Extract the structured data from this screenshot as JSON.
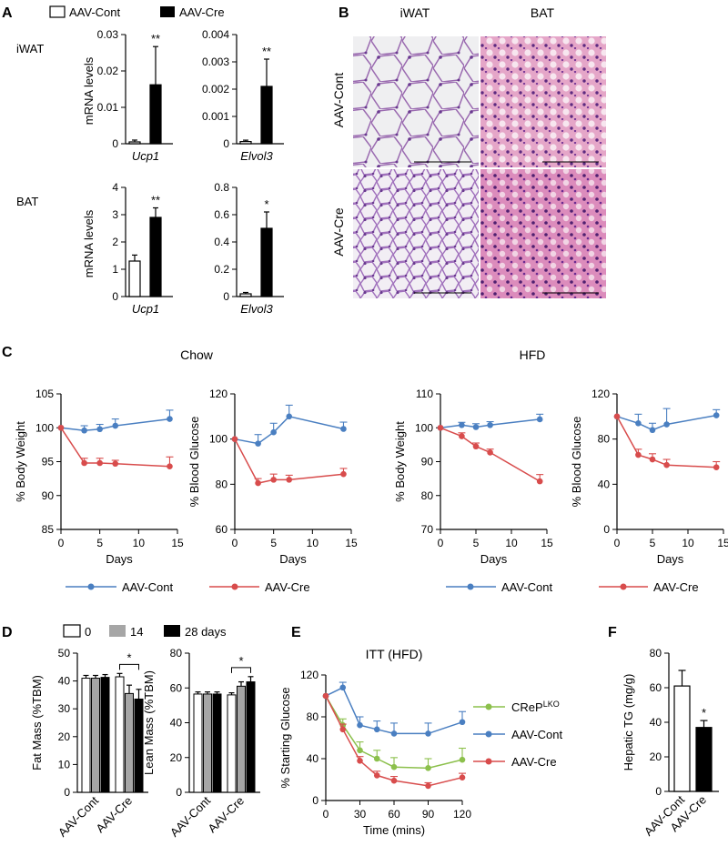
{
  "panel_labels": {
    "A": "A",
    "B": "B",
    "C": "C",
    "D": "D",
    "E": "E",
    "F": "F"
  },
  "colors": {
    "cont": "#4a7fc1",
    "cre": "#d84c4c",
    "crep": "#8cc04c",
    "grey": "#a6a6a6"
  },
  "panelA": {
    "legend": {
      "cont": "AAV-Cont",
      "cre": "AAV-Cre"
    },
    "row_labels": {
      "iwat": "iWAT",
      "bat": "BAT"
    },
    "ylabel": "mRNA levels"
  },
  "panelB": {
    "col_labels": {
      "iwat": "iWAT",
      "bat": "BAT"
    },
    "row_labels": {
      "cont": "AAV-Cont",
      "cre": "AAV-Cre"
    }
  },
  "panelC": {
    "group_titles": {
      "chow": "Chow",
      "hfd": "HFD"
    },
    "legend": {
      "cont": "AAV-Cont",
      "cre": "AAV-Cre"
    }
  },
  "panelD": {
    "legend": {
      "d0": "0",
      "d14": "14",
      "d28": "28 days"
    }
  },
  "panelE": {
    "legend": {
      "crep": "CReP",
      "crep_sup": "LKO",
      "cont": "AAV-Cont",
      "cre": "AAV-Cre"
    }
  },
  "chart_data": [
    {
      "id": "A1",
      "type": "bar",
      "title": "",
      "gene": "Ucp1",
      "tissue": "iWAT",
      "ylabel": "mRNA levels",
      "categories": [
        "AAV-Cont",
        "AAV-Cre"
      ],
      "values": [
        0.0005,
        0.0162
      ],
      "errors": [
        0.0005,
        0.0105
      ],
      "ylim": [
        0,
        0.03
      ],
      "yticks": [
        0,
        0.01,
        0.02,
        0.03
      ],
      "ytick_labels": [
        "0",
        "0.01",
        "0.02",
        "0.03"
      ],
      "sig": "**"
    },
    {
      "id": "A2",
      "type": "bar",
      "title": "",
      "gene": "Elvol3",
      "tissue": "iWAT",
      "categories": [
        "AAV-Cont",
        "AAV-Cre"
      ],
      "values": [
        8e-05,
        0.0021
      ],
      "errors": [
        5e-05,
        0.001
      ],
      "ylim": [
        0,
        0.004
      ],
      "yticks": [
        0,
        0.001,
        0.002,
        0.003,
        0.004
      ],
      "ytick_labels": [
        "0",
        "0.001",
        "0.002",
        "0.003",
        "0.004"
      ],
      "sig": "**"
    },
    {
      "id": "A3",
      "type": "bar",
      "title": "",
      "gene": "Ucp1",
      "tissue": "BAT",
      "ylabel": "mRNA levels",
      "categories": [
        "AAV-Cont",
        "AAV-Cre"
      ],
      "values": [
        1.3,
        2.9
      ],
      "errors": [
        0.22,
        0.35
      ],
      "ylim": [
        0,
        4
      ],
      "yticks": [
        0,
        1,
        2,
        3,
        4
      ],
      "ytick_labels": [
        "0",
        "1",
        "2",
        "3",
        "4"
      ],
      "sig": "**"
    },
    {
      "id": "A4",
      "type": "bar",
      "title": "",
      "gene": "Elvol3",
      "tissue": "BAT",
      "categories": [
        "AAV-Cont",
        "AAV-Cre"
      ],
      "values": [
        0.02,
        0.5
      ],
      "errors": [
        0.01,
        0.12
      ],
      "ylim": [
        0,
        0.8
      ],
      "yticks": [
        0,
        0.2,
        0.4,
        0.6,
        0.8
      ],
      "ytick_labels": [
        "0",
        "0.2",
        "0.4",
        "0.6",
        "0.8"
      ],
      "sig": "*"
    },
    {
      "id": "C1",
      "type": "line",
      "title": "Chow",
      "xlabel": "Days",
      "ylabel": "% Body Weight",
      "xlim": [
        0,
        15
      ],
      "xticks": [
        0,
        5,
        10,
        15
      ],
      "ylim": [
        85,
        105
      ],
      "yticks": [
        85,
        90,
        95,
        100,
        105
      ],
      "series": [
        {
          "name": "AAV-Cont",
          "x": [
            0,
            3,
            5,
            7,
            14
          ],
          "y": [
            100,
            99.6,
            99.8,
            100.3,
            101.3
          ],
          "err": [
            0,
            0.7,
            0.7,
            1.0,
            1.3
          ]
        },
        {
          "name": "AAV-Cre",
          "x": [
            0,
            3,
            5,
            7,
            14
          ],
          "y": [
            100,
            94.8,
            94.8,
            94.7,
            94.3
          ],
          "err": [
            0,
            0.7,
            0.7,
            0.5,
            1.4
          ]
        }
      ]
    },
    {
      "id": "C2",
      "type": "line",
      "title": "Chow",
      "xlabel": "Days",
      "ylabel": "% Blood Glucose",
      "xlim": [
        0,
        15
      ],
      "xticks": [
        0,
        5,
        10,
        15
      ],
      "ylim": [
        60,
        120
      ],
      "yticks": [
        60,
        80,
        100,
        120
      ],
      "series": [
        {
          "name": "AAV-Cont",
          "x": [
            0,
            3,
            5,
            7,
            14
          ],
          "y": [
            100,
            98,
            103,
            110,
            104.5
          ],
          "err": [
            0,
            4,
            4,
            5,
            3
          ]
        },
        {
          "name": "AAV-Cre",
          "x": [
            0,
            3,
            5,
            7,
            14
          ],
          "y": [
            100,
            80.5,
            82,
            82,
            84.5
          ],
          "err": [
            0,
            2,
            2.5,
            2,
            2.5
          ]
        }
      ]
    },
    {
      "id": "C3",
      "type": "line",
      "title": "HFD",
      "xlabel": "Days",
      "ylabel": "% Body Weight",
      "xlim": [
        0,
        15
      ],
      "xticks": [
        0,
        5,
        10,
        15
      ],
      "ylim": [
        70,
        110
      ],
      "yticks": [
        70,
        80,
        90,
        100,
        110
      ],
      "series": [
        {
          "name": "AAV-Cont",
          "x": [
            0,
            3,
            5,
            7,
            14
          ],
          "y": [
            100,
            100.8,
            100.2,
            100.8,
            102.5
          ],
          "err": [
            0,
            0.8,
            1.0,
            1.0,
            1.5
          ]
        },
        {
          "name": "AAV-Cre",
          "x": [
            0,
            3,
            5,
            7,
            14
          ],
          "y": [
            100,
            97.5,
            94.5,
            92.7,
            84.2
          ],
          "err": [
            0,
            1.0,
            1.0,
            1.0,
            2.0
          ]
        }
      ]
    },
    {
      "id": "C4",
      "type": "line",
      "title": "HFD",
      "xlabel": "Days",
      "ylabel": "% Blood Glucose",
      "xlim": [
        0,
        15
      ],
      "xticks": [
        0,
        5,
        10,
        15
      ],
      "ylim": [
        0,
        120
      ],
      "yticks": [
        0,
        40,
        80,
        120
      ],
      "series": [
        {
          "name": "AAV-Cont",
          "x": [
            0,
            3,
            5,
            7,
            14
          ],
          "y": [
            100,
            94,
            88,
            93,
            101
          ],
          "err": [
            0,
            8,
            6,
            14,
            5
          ]
        },
        {
          "name": "AAV-Cre",
          "x": [
            0,
            3,
            5,
            7,
            14
          ],
          "y": [
            100,
            66,
            62,
            57,
            55
          ],
          "err": [
            0,
            5,
            5,
            5,
            5
          ]
        }
      ]
    },
    {
      "id": "D1",
      "type": "bar",
      "title": "",
      "ylabel": "Fat Mass (%TBM)",
      "categories": [
        "AAV-Cont",
        "AAV-Cre"
      ],
      "ylim": [
        0,
        50
      ],
      "yticks": [
        0,
        10,
        20,
        30,
        40,
        50
      ],
      "series": [
        {
          "name": "0",
          "values": [
            41,
            41.5
          ],
          "errors": [
            1.0,
            1.2
          ]
        },
        {
          "name": "14",
          "values": [
            41,
            35.5
          ],
          "errors": [
            1.0,
            3.0
          ]
        },
        {
          "name": "28 days",
          "values": [
            41.3,
            33.5
          ],
          "errors": [
            1.0,
            3.5
          ]
        }
      ],
      "sig": "*"
    },
    {
      "id": "D2",
      "type": "bar",
      "title": "",
      "ylabel": "Lean Mass (%TBM)",
      "categories": [
        "AAV-Cont",
        "AAV-Cre"
      ],
      "ylim": [
        0,
        80
      ],
      "yticks": [
        0,
        20,
        40,
        60,
        80
      ],
      "series": [
        {
          "name": "0",
          "values": [
            56.5,
            56
          ],
          "errors": [
            1.2,
            1.2
          ]
        },
        {
          "name": "14",
          "values": [
            56.5,
            61
          ],
          "errors": [
            1.2,
            2.5
          ]
        },
        {
          "name": "28 days",
          "values": [
            56.5,
            63.5
          ],
          "errors": [
            1.2,
            3.0
          ]
        }
      ],
      "sig": "*"
    },
    {
      "id": "E",
      "type": "line",
      "title": "ITT (HFD)",
      "xlabel": "Time (mins)",
      "ylabel": "% Starting Glucose",
      "xlim": [
        0,
        120
      ],
      "xticks": [
        0,
        30,
        60,
        90,
        120
      ],
      "ylim": [
        0,
        120
      ],
      "yticks": [
        0,
        40,
        80,
        120
      ],
      "series": [
        {
          "name": "CRePLKO",
          "x": [
            0,
            15,
            30,
            45,
            60,
            90,
            120
          ],
          "y": [
            100,
            72,
            48,
            40,
            32,
            31,
            39
          ],
          "err": [
            0,
            6,
            8,
            8,
            9,
            9,
            11
          ]
        },
        {
          "name": "AAV-Cont",
          "x": [
            0,
            15,
            30,
            45,
            60,
            90,
            120
          ],
          "y": [
            100,
            108,
            72,
            68,
            64,
            64,
            75
          ],
          "err": [
            0,
            5,
            8,
            8,
            10,
            10,
            10
          ]
        },
        {
          "name": "AAV-Cre",
          "x": [
            0,
            15,
            30,
            45,
            60,
            90,
            120
          ],
          "y": [
            100,
            68,
            38,
            24,
            19,
            14,
            22
          ],
          "err": [
            0,
            5,
            4,
            4,
            4,
            3,
            4
          ]
        }
      ]
    },
    {
      "id": "F",
      "type": "bar",
      "title": "",
      "ylabel": "Hepatic TG (mg/g)",
      "categories": [
        "AAV-Cont",
        "AAV-Cre"
      ],
      "values": [
        61,
        37
      ],
      "errors": [
        9,
        4
      ],
      "ylim": [
        0,
        80
      ],
      "yticks": [
        0,
        20,
        40,
        60,
        80
      ],
      "sig": "*"
    }
  ]
}
